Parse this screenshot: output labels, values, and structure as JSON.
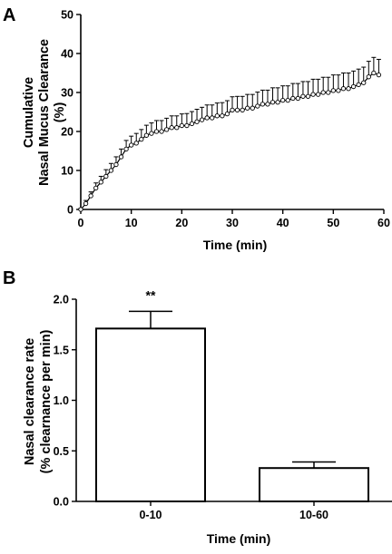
{
  "chart_data": [
    {
      "panel": "A",
      "type": "line",
      "xlabel": "Time (min)",
      "ylabel": [
        "Cumulative",
        "Nasal Mucus Clearance",
        "(%)"
      ],
      "xlim": [
        0,
        60
      ],
      "ylim": [
        0,
        50
      ],
      "x_ticks": [
        "0",
        "10",
        "20",
        "30",
        "40",
        "50",
        "60"
      ],
      "y_ticks": [
        "0",
        "10",
        "20",
        "30",
        "40",
        "50"
      ],
      "x": [
        0,
        1,
        2,
        3,
        4,
        5,
        6,
        7,
        8,
        9,
        10,
        11,
        12,
        13,
        14,
        15,
        16,
        17,
        18,
        19,
        20,
        21,
        22,
        23,
        24,
        25,
        26,
        27,
        28,
        29,
        30,
        31,
        32,
        33,
        34,
        35,
        36,
        37,
        38,
        39,
        40,
        41,
        42,
        43,
        44,
        45,
        46,
        47,
        48,
        49,
        50,
        51,
        52,
        53,
        54,
        55,
        56,
        57,
        58,
        59
      ],
      "series": [
        {
          "values": [
            0,
            1.5,
            3.5,
            5.5,
            7,
            8.5,
            10,
            11.5,
            13.5,
            15.5,
            16.5,
            17,
            18,
            19,
            19.5,
            20,
            20,
            20.5,
            21,
            21,
            21.5,
            21.5,
            22,
            22.5,
            23,
            23.5,
            23.5,
            24,
            24,
            24.5,
            25.5,
            25.5,
            25.5,
            26,
            26,
            26.5,
            27,
            27,
            27.5,
            27.5,
            28,
            28,
            28.5,
            28.5,
            29,
            29,
            29.5,
            29.5,
            30,
            30,
            30.5,
            30.5,
            31,
            31,
            31.5,
            32,
            32.5,
            34,
            35,
            34.5
          ],
          "errors": [
            0.3,
            0.8,
            1,
            1.3,
            1.5,
            1.7,
            1.8,
            2,
            2,
            2.2,
            2.3,
            2.5,
            2.5,
            2.6,
            2.7,
            2.8,
            2.8,
            2.9,
            3,
            3,
            3,
            3.1,
            3.1,
            3.2,
            3.2,
            3.3,
            3.3,
            3.3,
            3.4,
            3.4,
            3.4,
            3.5,
            3.5,
            3.5,
            3.5,
            3.6,
            3.6,
            3.6,
            3.7,
            3.7,
            3.7,
            3.7,
            3.8,
            3.8,
            3.8,
            3.8,
            3.9,
            3.9,
            3.9,
            3.9,
            4,
            4,
            4,
            4,
            4,
            4,
            4,
            4,
            4,
            4
          ]
        }
      ]
    },
    {
      "panel": "B",
      "type": "bar",
      "xlabel": "Time (min)",
      "ylabel": [
        "Nasal clearance rate",
        "(% clearnance per min)"
      ],
      "ylim": [
        0,
        2.0
      ],
      "y_ticks": [
        "0.0",
        "0.5",
        "1.0",
        "1.5",
        "2.0"
      ],
      "categories": [
        "0-10",
        "10-60"
      ],
      "values": [
        1.71,
        0.33
      ],
      "errors": [
        0.17,
        0.06
      ],
      "annotations": [
        "**",
        ""
      ]
    }
  ]
}
